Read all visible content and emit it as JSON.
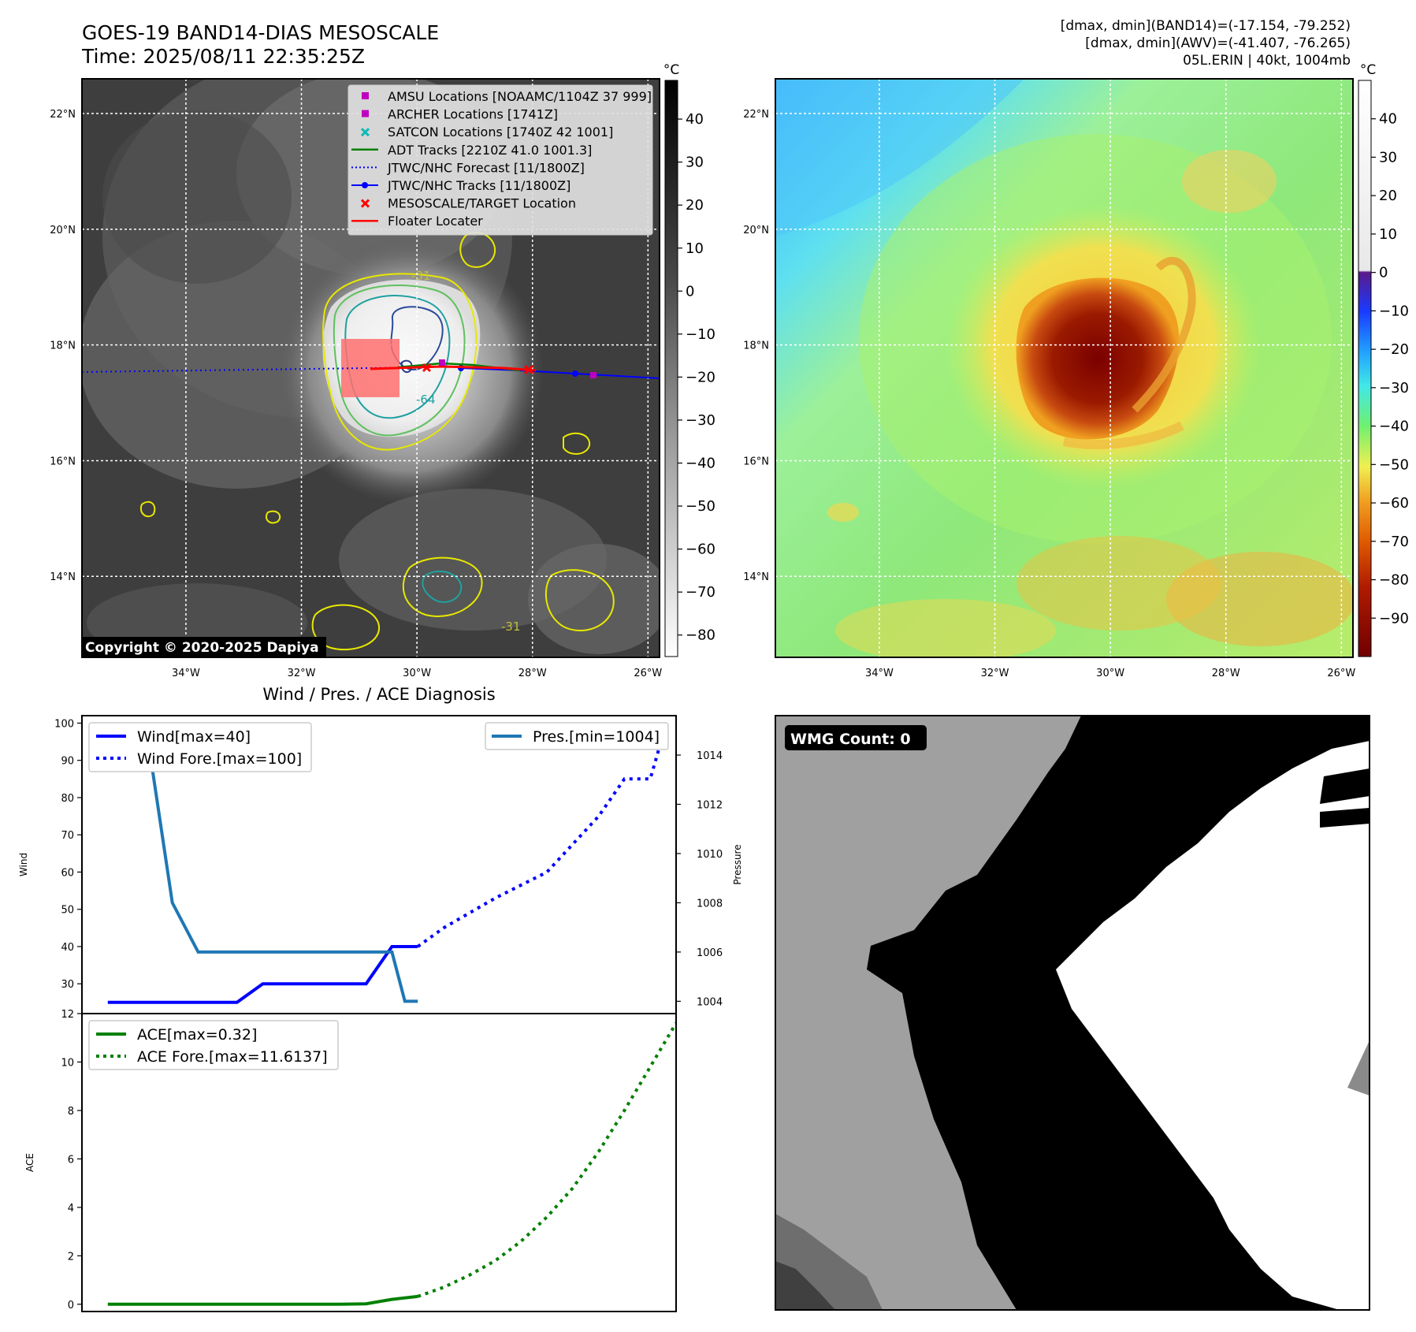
{
  "header": {
    "title_line1": "GOES-19 BAND14-DIAS MESOSCALE",
    "title_line2": "Time: 2025/08/11 22:35:25Z",
    "info_line1": "[dmax, dmin](BAND14)=(-17.154, -79.252)",
    "info_line2": "[dmax, dmin](AWV)=(-41.407, -76.265)",
    "info_line3": "05L.ERIN | 40kt, 1004mb"
  },
  "map": {
    "lat_labels": [
      "22°N",
      "20°N",
      "18°N",
      "16°N",
      "14°N"
    ],
    "lat_values": [
      22,
      20,
      18,
      16,
      14
    ],
    "lon_labels": [
      "34°W",
      "32°W",
      "30°W",
      "28°W",
      "26°W"
    ],
    "lon_values": [
      -34,
      -32,
      -30,
      -28,
      -26
    ],
    "lon_range": [
      -35.8,
      -25.8
    ],
    "lat_range": [
      12.6,
      22.6
    ],
    "copyright": "Copyright © 2020-2025 Dapiya",
    "contour_labels": [
      "-31",
      "-64",
      "-31"
    ],
    "storm_center": [
      -30.2,
      17.35
    ]
  },
  "legend": {
    "items": [
      {
        "label": "AMSU Locations [NOAAMC/1104Z 37 999]",
        "marker": "square",
        "color": "#c000c0"
      },
      {
        "label": "ARCHER Locations [1741Z]",
        "marker": "square",
        "color": "#c000c0"
      },
      {
        "label": "SATCON Locations [1740Z 42 1001]",
        "marker": "x",
        "color": "#10b8b8"
      },
      {
        "label": "ADT Tracks [2210Z 41.0 1001.3]",
        "marker": "line",
        "color": "#008000"
      },
      {
        "label": "JTWC/NHC Forecast [11/1800Z]",
        "marker": "dotted",
        "color": "#0000ff"
      },
      {
        "label": "JTWC/NHC Tracks [11/1800Z]",
        "marker": "line-dot",
        "color": "#0000ff"
      },
      {
        "label": "MESOSCALE/TARGET Location",
        "marker": "x",
        "color": "#ff0000"
      },
      {
        "label": "Floater Locater",
        "marker": "line",
        "color": "#ff0000"
      }
    ]
  },
  "colorbar_left": {
    "unit": "°C",
    "ticks": [
      "40",
      "30",
      "20",
      "10",
      "0",
      "−10",
      "−20",
      "−30",
      "−40",
      "−50",
      "−60",
      "−70",
      "−80"
    ],
    "tick_values": [
      40,
      30,
      20,
      10,
      0,
      -10,
      -20,
      -30,
      -40,
      -50,
      -60,
      -70,
      -80
    ],
    "range": [
      -85,
      49
    ]
  },
  "colorbar_right": {
    "unit": "°C",
    "ticks": [
      "40",
      "30",
      "20",
      "10",
      "0",
      "−10",
      "−20",
      "−30",
      "−40",
      "−50",
      "−60",
      "−70",
      "−80",
      "−90"
    ],
    "tick_values": [
      40,
      30,
      20,
      10,
      0,
      -10,
      -20,
      -30,
      -40,
      -50,
      -60,
      -70,
      -80,
      -90
    ],
    "range": [
      -100,
      50
    ]
  },
  "colors": {
    "wind": "#0000ff",
    "pressure": "#1f77b4",
    "ace": "#008000",
    "ir_background": "#3c3c3c"
  },
  "chart_data": [
    {
      "type": "line",
      "title": "Wind / Pres. / ACE Diagnosis",
      "ylabel": "Wind",
      "ylabel_right": "Pressure",
      "ylim": [
        22,
        102
      ],
      "ylim_right": [
        1003.5,
        1015.6
      ],
      "yticks": [
        30,
        40,
        50,
        60,
        70,
        80,
        90,
        100
      ],
      "yticks_right": [
        1004,
        1006,
        1008,
        1010,
        1012,
        1014
      ],
      "xlim": [
        -1,
        22
      ],
      "series": [
        {
          "name": "Wind[max=40]",
          "axis": "left",
          "style": "solid",
          "x": [
            0,
            1,
            2,
            3,
            4,
            5,
            6,
            7,
            8,
            9,
            10,
            11,
            12
          ],
          "y": [
            25,
            25,
            25,
            25,
            25,
            25,
            30,
            30,
            30,
            30,
            30,
            40,
            40
          ]
        },
        {
          "name": "Wind Fore.[max=100]",
          "axis": "left",
          "style": "dotted",
          "x": [
            12,
            13,
            15,
            17,
            19,
            20,
            21,
            21.5
          ],
          "y": [
            40,
            45,
            53,
            60,
            75,
            85,
            85,
            97
          ]
        },
        {
          "name": "Pres.[min=1004]",
          "axis": "right",
          "style": "solid",
          "x": [
            1,
            1.5,
            2.5,
            3.5,
            5,
            6,
            8,
            10,
            11,
            11.5,
            12
          ],
          "y": [
            1015,
            1015,
            1008,
            1006,
            1006,
            1006,
            1006,
            1006,
            1006,
            1004,
            1004
          ]
        }
      ]
    },
    {
      "type": "line",
      "ylabel": "ACE",
      "ylim": [
        -0.3,
        12
      ],
      "yticks": [
        0,
        2,
        4,
        6,
        8,
        10,
        12
      ],
      "xlim": [
        -1,
        22
      ],
      "series": [
        {
          "name": "ACE[max=0.32]",
          "style": "solid",
          "x": [
            0,
            1,
            2,
            3,
            4,
            5,
            6,
            7,
            8,
            9,
            10,
            11,
            12
          ],
          "y": [
            0,
            0,
            0,
            0,
            0,
            0,
            0,
            0,
            0,
            0,
            0.02,
            0.2,
            0.32
          ]
        },
        {
          "name": "ACE Fore.[max=11.6137]",
          "style": "dotted",
          "x": [
            12,
            13,
            14,
            15,
            16,
            17,
            18,
            19,
            20,
            21,
            22
          ],
          "y": [
            0.32,
            0.7,
            1.2,
            1.8,
            2.6,
            3.6,
            4.8,
            6.3,
            8.0,
            9.8,
            11.61
          ]
        }
      ]
    }
  ],
  "wmg": {
    "label": "WMG Count: 0"
  }
}
